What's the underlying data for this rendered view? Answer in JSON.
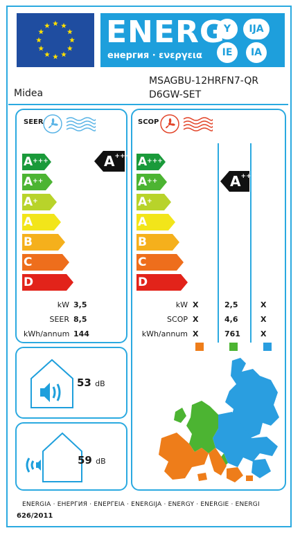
{
  "header": {
    "energy_title": "ENERG",
    "energy_subtitle": "енергия · ενεργεια",
    "lang_codes": [
      "Y",
      "IJA",
      "IE",
      "IA"
    ]
  },
  "product": {
    "supplier": "Midea",
    "model_line1": "MSAGBU-12HRFN7-QR",
    "model_line2": "D6GW-SET"
  },
  "cooling": {
    "label": "SEER",
    "classes": [
      {
        "base": "A",
        "sup": "+++",
        "color": "#1a9a3a"
      },
      {
        "base": "A",
        "sup": "++",
        "color": "#4cb432"
      },
      {
        "base": "A",
        "sup": "+",
        "color": "#b8d32a"
      },
      {
        "base": "A",
        "sup": "",
        "color": "#f2e51a"
      },
      {
        "base": "B",
        "sup": "",
        "color": "#f5b01c"
      },
      {
        "base": "C",
        "sup": "",
        "color": "#ee6e1c"
      },
      {
        "base": "D",
        "sup": "",
        "color": "#e2231a"
      }
    ],
    "rating": {
      "base": "A",
      "sup": "+++"
    },
    "specs": [
      {
        "label": "kW",
        "value": "3,5"
      },
      {
        "label": "SEER",
        "value": "8,5"
      },
      {
        "label": "kWh/annum",
        "value": "144"
      }
    ]
  },
  "heating": {
    "label": "SCOP",
    "classes": [
      {
        "base": "A",
        "sup": "+++",
        "color": "#1a9a3a"
      },
      {
        "base": "A",
        "sup": "++",
        "color": "#4cb432"
      },
      {
        "base": "A",
        "sup": "+",
        "color": "#b8d32a"
      },
      {
        "base": "A",
        "sup": "",
        "color": "#f2e51a"
      },
      {
        "base": "B",
        "sup": "",
        "color": "#f5b01c"
      },
      {
        "base": "C",
        "sup": "",
        "color": "#ee6e1c"
      },
      {
        "base": "D",
        "sup": "",
        "color": "#e2231a"
      }
    ],
    "rating": {
      "base": "A",
      "sup": "++"
    },
    "specs": [
      {
        "label": "kW",
        "col1": "X",
        "col2": "2,5",
        "col3": "X"
      },
      {
        "label": "SCOP",
        "col1": "X",
        "col2": "4,6",
        "col3": "X"
      },
      {
        "label": "kWh/annum",
        "col1": "X",
        "col2": "761",
        "col3": "X"
      }
    ],
    "zone_colors": [
      "#ee7d1a",
      "#4cb432",
      "#2a9ee0"
    ]
  },
  "noise": {
    "indoor_value": "53",
    "outdoor_value": "59",
    "unit": "dB"
  },
  "footer": {
    "languages": "ENERGIA · ЕНЕРГИЯ · ΕΝΕΡΓΕΙΑ · ENERGIJA · ENERGY · ENERGIE · ENERGI",
    "regulation": "626/2011"
  }
}
